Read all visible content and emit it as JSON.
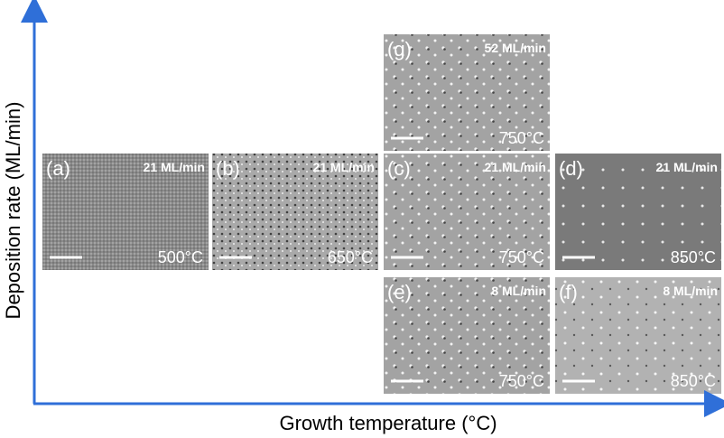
{
  "axes": {
    "y_label": "Deposition rate (ML/min)",
    "x_label": "Growth temperature (°C)"
  },
  "panels": [
    {
      "label": "(a)",
      "rate": "21 ML/min",
      "temperature": "500°C"
    },
    {
      "label": "(b)",
      "rate": "21 ML/min",
      "temperature": "650°C"
    },
    {
      "label": "(c)",
      "rate": "21 ML/min",
      "temperature": "750°C"
    },
    {
      "label": "(d)",
      "rate": "21 ML/min",
      "temperature": "850°C"
    },
    {
      "label": "(e)",
      "rate": "8 ML/min",
      "temperature": "750°C"
    },
    {
      "label": "(f)",
      "rate": "8 ML/min",
      "temperature": "850°C"
    },
    {
      "label": "(g)",
      "rate": "52 ML/min",
      "temperature": "750°C"
    }
  ]
}
